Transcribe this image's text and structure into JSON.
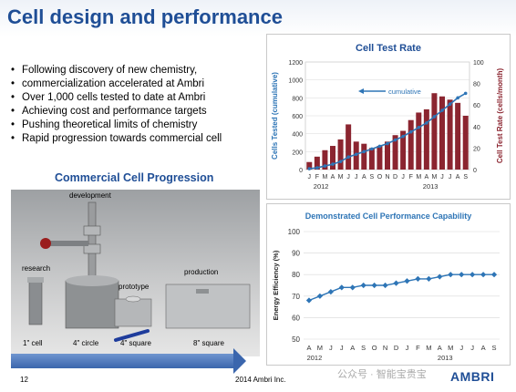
{
  "slide": {
    "title": "Cell design and performance",
    "bullets": [
      "Following discovery of new chemistry,",
      "commercialization accelerated at Ambri",
      "Over 1,000 cells tested to date at Ambri",
      "Achieving cost and performance targets",
      "Pushing theoretical limits of chemistry",
      "Rapid progression towards commercial cell"
    ],
    "progression_title": "Commercial Cell Progression",
    "photo_labels": {
      "development": "development",
      "research": "research",
      "prototype": "prototype",
      "production": "production",
      "cell1": "1\" cell",
      "cell2": "4\" circle",
      "cell3": "4\" square",
      "cell4": "8\" square"
    },
    "footer_page": "12",
    "footer_copyright": "2014 Ambri Inc.",
    "watermark": "公众号 · 智能宝贵宝",
    "logo": "AMBRI"
  },
  "colors": {
    "title_blue": "#1f4e96",
    "bar_red": "#8b2530",
    "line_blue": "#2e75b6"
  },
  "chart_data": [
    {
      "type": "bar",
      "title": "Cell Test Rate",
      "ylabel": "Cells Tested (cumulative)",
      "y2label": "Cell Test Rate (cells/month)",
      "annotation": "cumulative",
      "categories": [
        "J",
        "F",
        "M",
        "A",
        "M",
        "J",
        "J",
        "A",
        "S",
        "O",
        "N",
        "D",
        "J",
        "F",
        "M",
        "A",
        "M",
        "J",
        "J",
        "A",
        "S"
      ],
      "year_labels": [
        "2012",
        "2013"
      ],
      "ylim": [
        0,
        1200
      ],
      "y2lim": [
        0,
        100
      ],
      "yticks": [
        0,
        200,
        400,
        600,
        800,
        1000,
        1200
      ],
      "y2ticks": [
        0,
        20,
        40,
        60,
        80,
        100
      ],
      "series": [
        {
          "values": [
            7,
            12,
            18,
            22,
            28,
            42,
            26,
            24,
            20,
            22,
            26,
            32,
            36,
            46,
            53,
            56,
            71,
            68,
            65,
            62,
            50
          ]
        },
        {
          "values": [
            10,
            20,
            40,
            60,
            90,
            140,
            170,
            200,
            230,
            260,
            290,
            330,
            370,
            420,
            470,
            520,
            590,
            660,
            730,
            800,
            850
          ]
        }
      ]
    },
    {
      "type": "line",
      "title": "Demonstrated Cell Performance Capability",
      "ylabel": "Energy Efficiency (%)",
      "categories": [
        "A",
        "M",
        "J",
        "J",
        "A",
        "S",
        "O",
        "N",
        "D",
        "J",
        "F",
        "M",
        "A",
        "M",
        "J",
        "J",
        "A",
        "S"
      ],
      "year_labels": [
        "2012",
        "2013"
      ],
      "ylim": [
        50,
        100
      ],
      "yticks": [
        50,
        60,
        70,
        80,
        90,
        100
      ],
      "series": [
        {
          "values": [
            68,
            70,
            72,
            74,
            74,
            75,
            75,
            75,
            76,
            77,
            78,
            78,
            79,
            80,
            80,
            80,
            80,
            80
          ]
        }
      ]
    }
  ]
}
